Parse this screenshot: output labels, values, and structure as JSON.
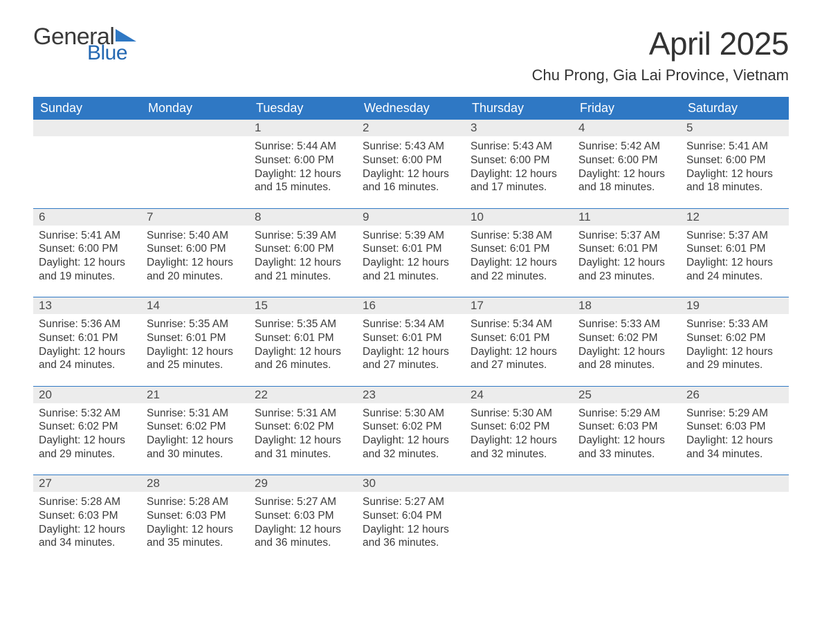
{
  "logo": {
    "text_a": "General",
    "text_b": "Blue",
    "triangle_color": "#2f78c4"
  },
  "title": "April 2025",
  "location": "Chu Prong, Gia Lai Province, Vietnam",
  "colors": {
    "header_bg": "#2f78c4",
    "rule": "#2f78c4",
    "daynum_bg": "#ececec",
    "text": "#2a2a2a",
    "accent": "#2468b2",
    "background": "#ffffff"
  },
  "typography": {
    "title_fontsize": 46,
    "location_fontsize": 22,
    "header_fontsize": 18,
    "daynum_fontsize": 17,
    "body_fontsize": 15.5
  },
  "weekday_headers": [
    "Sunday",
    "Monday",
    "Tuesday",
    "Wednesday",
    "Thursday",
    "Friday",
    "Saturday"
  ],
  "labels": {
    "sunrise": "Sunrise: ",
    "sunset": "Sunset: ",
    "daylight": "Daylight: "
  },
  "weeks": [
    [
      null,
      null,
      {
        "n": "1",
        "sr": "5:44 AM",
        "ss": "6:00 PM",
        "dl": "12 hours and 15 minutes."
      },
      {
        "n": "2",
        "sr": "5:43 AM",
        "ss": "6:00 PM",
        "dl": "12 hours and 16 minutes."
      },
      {
        "n": "3",
        "sr": "5:43 AM",
        "ss": "6:00 PM",
        "dl": "12 hours and 17 minutes."
      },
      {
        "n": "4",
        "sr": "5:42 AM",
        "ss": "6:00 PM",
        "dl": "12 hours and 18 minutes."
      },
      {
        "n": "5",
        "sr": "5:41 AM",
        "ss": "6:00 PM",
        "dl": "12 hours and 18 minutes."
      }
    ],
    [
      {
        "n": "6",
        "sr": "5:41 AM",
        "ss": "6:00 PM",
        "dl": "12 hours and 19 minutes."
      },
      {
        "n": "7",
        "sr": "5:40 AM",
        "ss": "6:00 PM",
        "dl": "12 hours and 20 minutes."
      },
      {
        "n": "8",
        "sr": "5:39 AM",
        "ss": "6:00 PM",
        "dl": "12 hours and 21 minutes."
      },
      {
        "n": "9",
        "sr": "5:39 AM",
        "ss": "6:01 PM",
        "dl": "12 hours and 21 minutes."
      },
      {
        "n": "10",
        "sr": "5:38 AM",
        "ss": "6:01 PM",
        "dl": "12 hours and 22 minutes."
      },
      {
        "n": "11",
        "sr": "5:37 AM",
        "ss": "6:01 PM",
        "dl": "12 hours and 23 minutes."
      },
      {
        "n": "12",
        "sr": "5:37 AM",
        "ss": "6:01 PM",
        "dl": "12 hours and 24 minutes."
      }
    ],
    [
      {
        "n": "13",
        "sr": "5:36 AM",
        "ss": "6:01 PM",
        "dl": "12 hours and 24 minutes."
      },
      {
        "n": "14",
        "sr": "5:35 AM",
        "ss": "6:01 PM",
        "dl": "12 hours and 25 minutes."
      },
      {
        "n": "15",
        "sr": "5:35 AM",
        "ss": "6:01 PM",
        "dl": "12 hours and 26 minutes."
      },
      {
        "n": "16",
        "sr": "5:34 AM",
        "ss": "6:01 PM",
        "dl": "12 hours and 27 minutes."
      },
      {
        "n": "17",
        "sr": "5:34 AM",
        "ss": "6:01 PM",
        "dl": "12 hours and 27 minutes."
      },
      {
        "n": "18",
        "sr": "5:33 AM",
        "ss": "6:02 PM",
        "dl": "12 hours and 28 minutes."
      },
      {
        "n": "19",
        "sr": "5:33 AM",
        "ss": "6:02 PM",
        "dl": "12 hours and 29 minutes."
      }
    ],
    [
      {
        "n": "20",
        "sr": "5:32 AM",
        "ss": "6:02 PM",
        "dl": "12 hours and 29 minutes."
      },
      {
        "n": "21",
        "sr": "5:31 AM",
        "ss": "6:02 PM",
        "dl": "12 hours and 30 minutes."
      },
      {
        "n": "22",
        "sr": "5:31 AM",
        "ss": "6:02 PM",
        "dl": "12 hours and 31 minutes."
      },
      {
        "n": "23",
        "sr": "5:30 AM",
        "ss": "6:02 PM",
        "dl": "12 hours and 32 minutes."
      },
      {
        "n": "24",
        "sr": "5:30 AM",
        "ss": "6:02 PM",
        "dl": "12 hours and 32 minutes."
      },
      {
        "n": "25",
        "sr": "5:29 AM",
        "ss": "6:03 PM",
        "dl": "12 hours and 33 minutes."
      },
      {
        "n": "26",
        "sr": "5:29 AM",
        "ss": "6:03 PM",
        "dl": "12 hours and 34 minutes."
      }
    ],
    [
      {
        "n": "27",
        "sr": "5:28 AM",
        "ss": "6:03 PM",
        "dl": "12 hours and 34 minutes."
      },
      {
        "n": "28",
        "sr": "5:28 AM",
        "ss": "6:03 PM",
        "dl": "12 hours and 35 minutes."
      },
      {
        "n": "29",
        "sr": "5:27 AM",
        "ss": "6:03 PM",
        "dl": "12 hours and 36 minutes."
      },
      {
        "n": "30",
        "sr": "5:27 AM",
        "ss": "6:04 PM",
        "dl": "12 hours and 36 minutes."
      },
      null,
      null,
      null
    ]
  ]
}
